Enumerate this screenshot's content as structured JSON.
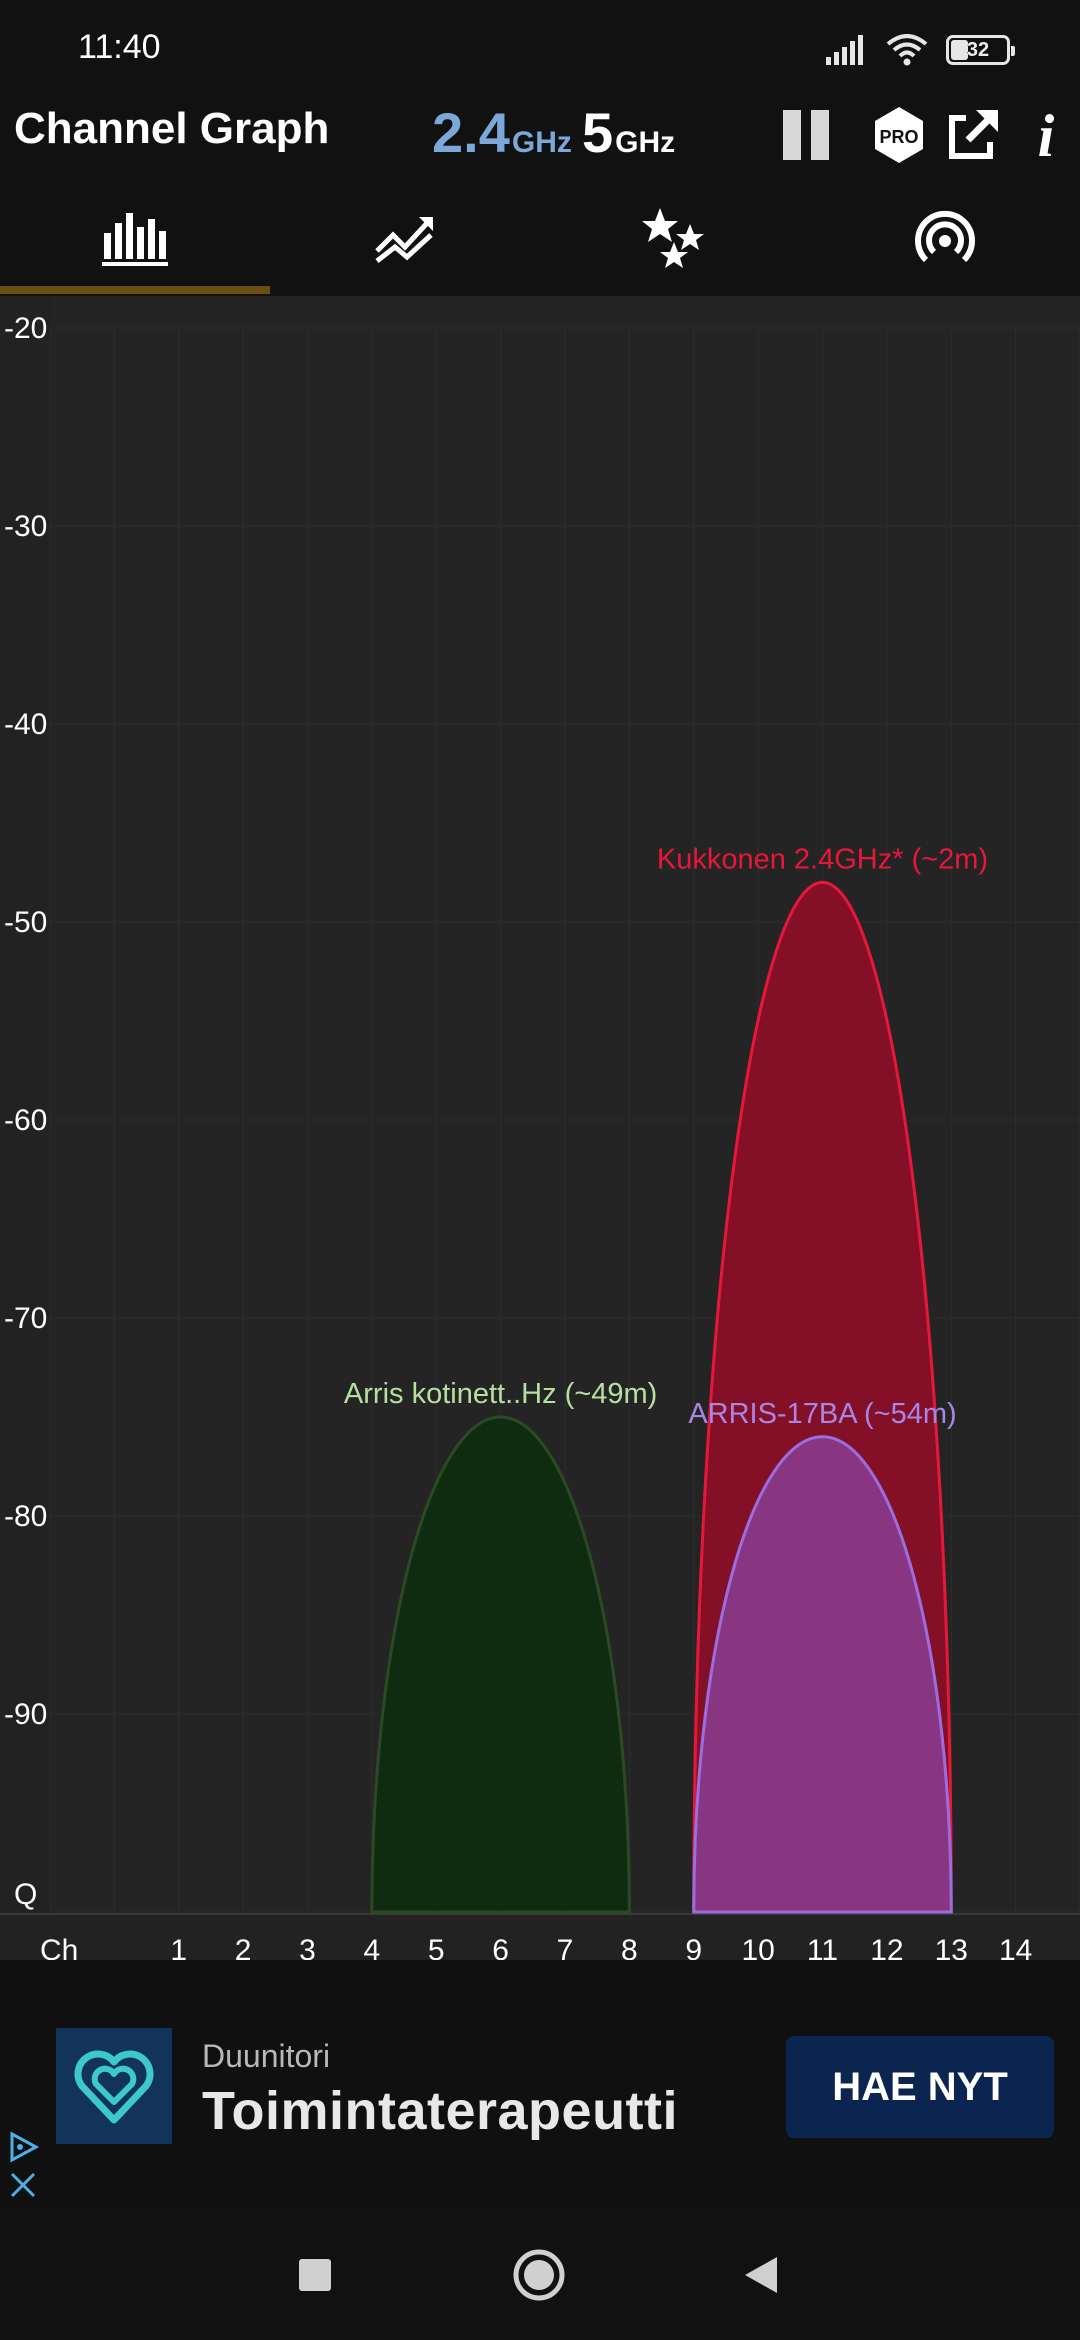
{
  "status_bar": {
    "time": "11:40",
    "battery_level": "32",
    "icons": [
      "signal-icon",
      "wifi-icon",
      "battery-icon"
    ]
  },
  "app_bar": {
    "title": "Channel Graph",
    "band_24": {
      "number": "2.4",
      "unit": "GHz",
      "selected": true
    },
    "band_5": {
      "number": "5",
      "unit": "GHz",
      "selected": false
    },
    "tools": [
      "pause-icon",
      "pro-icon",
      "share-icon",
      "info-icon"
    ],
    "pro_label": "PRO",
    "info_label": "i"
  },
  "tabs": [
    {
      "name": "channel-graph",
      "icon": "bar-chart-icon",
      "active": true
    },
    {
      "name": "time-graph",
      "icon": "line-graph-icon",
      "active": false
    },
    {
      "name": "channel-rating",
      "icon": "stars-icon",
      "active": false
    },
    {
      "name": "access-points",
      "icon": "wifi-signal-icon",
      "active": false
    }
  ],
  "colors": {
    "accent_band": "#7ba8d8",
    "tab_indicator": "#6b4f12",
    "chart_bg": "#222222",
    "kukkonen": "#e8173a",
    "arris_17ba": "#9b6ee0",
    "arris_kotinetti": "#8fd07a"
  },
  "chart_data": {
    "type": "area",
    "x_axis_label": "Ch",
    "y_axis_bottom_label": "Q",
    "x_ticks": [
      1,
      2,
      3,
      4,
      5,
      6,
      7,
      8,
      9,
      10,
      11,
      12,
      13,
      14
    ],
    "x_range": [
      -1,
      15
    ],
    "y_ticks": [
      -20,
      -30,
      -40,
      -50,
      -60,
      -70,
      -80,
      -90
    ],
    "y_range": [
      -100,
      -20
    ],
    "series": [
      {
        "name": "Arris kotinett..Hz (~49m)",
        "channel": 6,
        "width_channels": 4,
        "peak_dbm": -75,
        "stroke": "#2b4a22",
        "fill": "#0e2e10",
        "label_color": "#b5e09f"
      },
      {
        "name": "Kukkonen 2.4GHz* (~2m)",
        "channel": 11,
        "width_channels": 4,
        "peak_dbm": -48,
        "stroke": "#e8173a",
        "fill": "#8c0f27",
        "label_color": "#e8173a"
      },
      {
        "name": "ARRIS-17BA (~54m)",
        "channel": 11,
        "width_channels": 4,
        "peak_dbm": -76,
        "stroke": "#9b6ee0",
        "fill": "#8a3a8a",
        "label_color": "#a985e6"
      }
    ]
  },
  "ad": {
    "brand": "Duunitori",
    "title": "Toimintaterapeutti",
    "cta": "HAE NYT"
  },
  "nav_bar": {
    "buttons": [
      "recents-icon",
      "home-icon",
      "back-icon"
    ]
  }
}
